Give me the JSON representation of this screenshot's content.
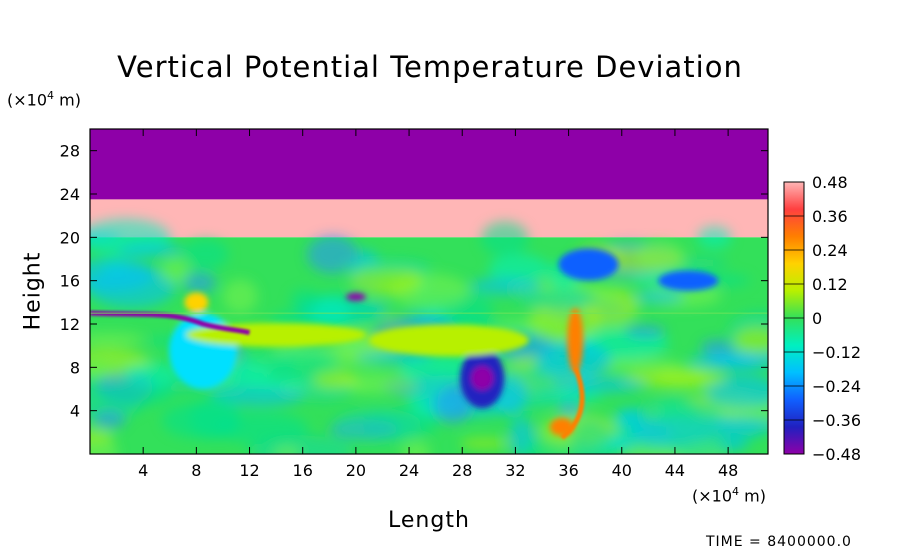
{
  "chart_data": {
    "type": "heatmap",
    "title": "Vertical Potential Temperature Deviation",
    "xlabel": "Length",
    "ylabel": "Height",
    "x_unit": "(×10⁴ m)",
    "y_unit": "(×10⁴ m)",
    "xlim": [
      0,
      51
    ],
    "ylim": [
      0,
      30
    ],
    "x_ticks": [
      4,
      8,
      12,
      16,
      20,
      24,
      28,
      32,
      36,
      40,
      44,
      48
    ],
    "y_ticks": [
      4,
      8,
      12,
      16,
      20,
      24,
      28
    ],
    "colorbar": {
      "range": [
        -0.48,
        0.48
      ],
      "ticks": [
        "0.48",
        "0.36",
        "0.24",
        "0.12",
        "0",
        "−0.12",
        "−0.24",
        "−0.36",
        "−0.48"
      ],
      "colors": [
        "#ffb6b6",
        "#ff4040",
        "#ff7f00",
        "#ffd200",
        "#b8f000",
        "#33e05a",
        "#00f0c0",
        "#00c0ff",
        "#1060ff",
        "#2020c0",
        "#8e00a8"
      ]
    },
    "regions": [
      {
        "name": "top-layer",
        "y_range": [
          23.5,
          30
        ],
        "value": -0.5,
        "color": "#8e00a8"
      },
      {
        "name": "upper-band",
        "y_range": [
          20,
          23.5
        ],
        "value": 0.5,
        "color": "#ffb6b6"
      },
      {
        "name": "turbulent-layer",
        "y_range": [
          0,
          20
        ],
        "value": 0,
        "color": "#33e05a"
      }
    ],
    "grid": false
  },
  "footer": {
    "time": "TIME = 8400000.0"
  }
}
